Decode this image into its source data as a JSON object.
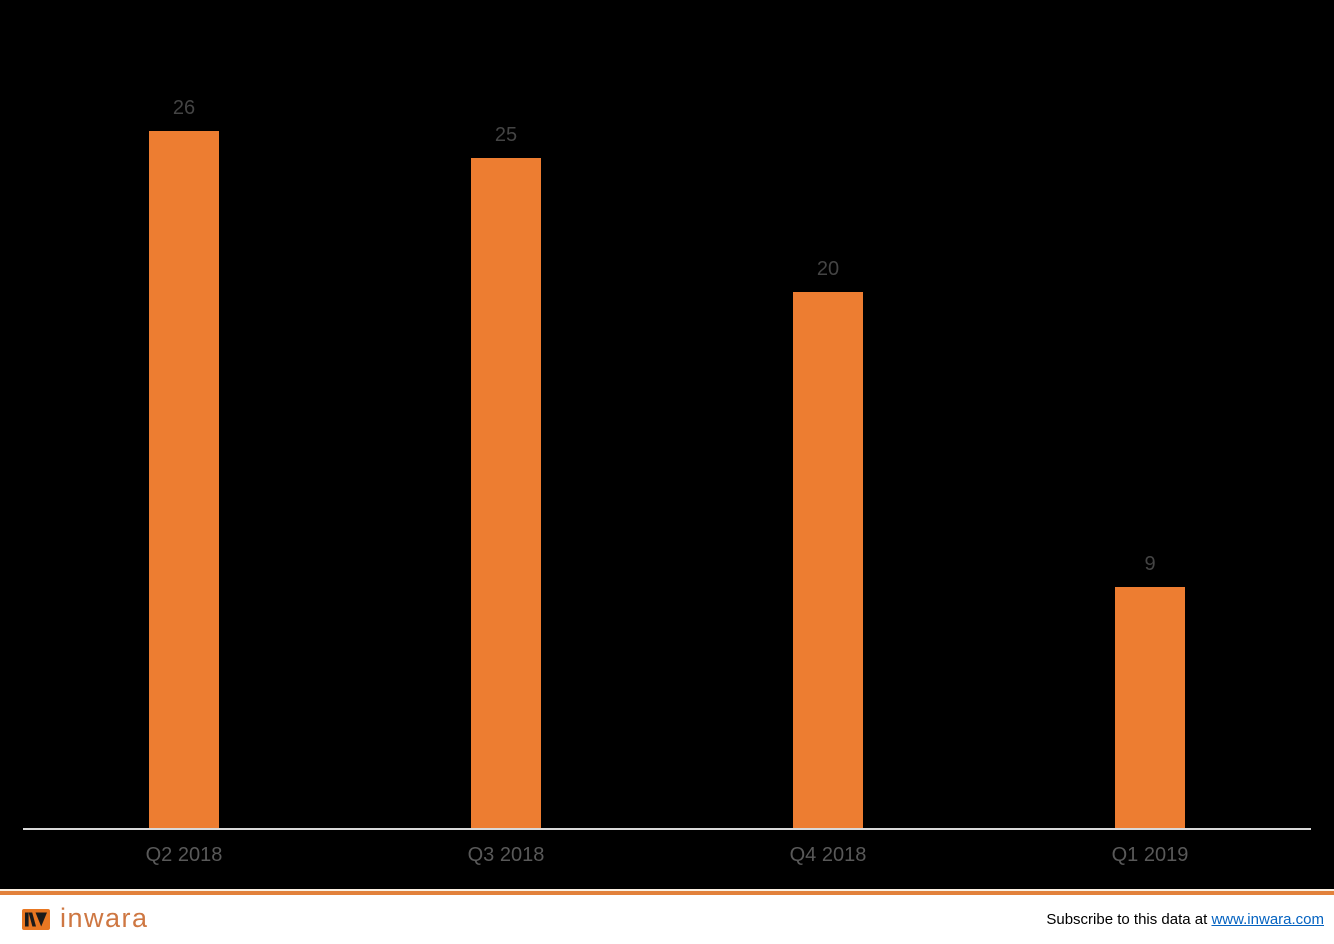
{
  "chart_data": {
    "type": "bar",
    "categories": [
      "Q2 2018",
      "Q3 2018",
      "Q4 2018",
      "Q1 2019"
    ],
    "values": [
      26,
      25,
      20,
      9
    ],
    "data_labels": [
      "26",
      "25",
      "20",
      "9"
    ],
    "title": "",
    "xlabel": "",
    "ylabel": "",
    "ylim": [
      0,
      30
    ],
    "grid": false,
    "legend": false,
    "bar_color": "#ED7D31",
    "value_label_color": "#444444",
    "axis_label_color": "#595959",
    "axis_line_color": "#D9D9D9",
    "background_color": "#000000"
  },
  "footer": {
    "brand_name": "inwara",
    "brand_mark": "inwara-logo-monogram",
    "subscribe_text": "Subscribe to this data at ",
    "subscribe_link": "www.inwara.com",
    "accent_color": "#E2813B",
    "link_color": "#0563C1"
  }
}
